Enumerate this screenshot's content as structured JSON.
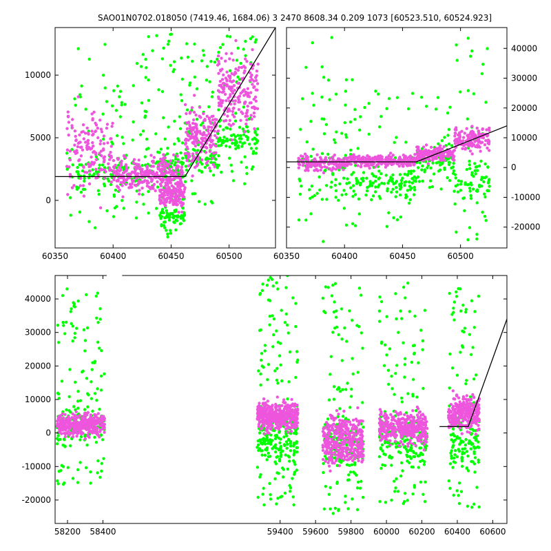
{
  "title": "SAO01N0702.018050 (7419.46, 1684.06)  3 2470 8608.34 0.209 1073 [60523.510, 60524.923]",
  "colors": {
    "series_a": "#00ff00",
    "series_b": "#ee55dd",
    "model": "#000000",
    "frame": "#000000"
  },
  "chart_data": [
    {
      "id": "top_left",
      "type": "scatter",
      "xlim": [
        60350,
        60540
      ],
      "ylim": [
        -3800,
        13800
      ],
      "xticks": [
        60350,
        60400,
        60450,
        60500
      ],
      "yticks": [
        0,
        5000,
        10000
      ],
      "ytick_side": "left",
      "clusters": [
        {
          "x": [
            60360,
            60400
          ],
          "ya": [
            -2500,
            12500
          ],
          "yb": [
            -1000,
            9000
          ],
          "n": 90
        },
        {
          "x": [
            60400,
            60425
          ],
          "ya": [
            -1500,
            11000
          ],
          "yb": [
            -300,
            4500
          ],
          "n": 70
        },
        {
          "x": [
            60425,
            60460
          ],
          "ya": [
            -2000,
            13500
          ],
          "yb": [
            -500,
            4500
          ],
          "n": 120
        },
        {
          "x": [
            60440,
            60462
          ],
          "ya": [
            -3000,
            3000
          ],
          "yb": [
            -1500,
            2500
          ],
          "n": 80
        },
        {
          "x": [
            60462,
            60490
          ],
          "ya": [
            -1000,
            13000
          ],
          "yb": [
            1000,
            9000
          ],
          "n": 110
        },
        {
          "x": [
            60490,
            60525
          ],
          "ya": [
            1000,
            13800
          ],
          "yb": [
            4000,
            13800
          ],
          "n": 120
        }
      ],
      "model": {
        "x": [
          60350,
          60462,
          60540
        ],
        "y": [
          1900,
          1900,
          13800
        ]
      }
    },
    {
      "id": "top_right",
      "type": "scatter",
      "xlim": [
        60350,
        60540
      ],
      "ylim": [
        -27000,
        47000
      ],
      "xticks": [
        60350,
        60400,
        60450,
        60500
      ],
      "yticks": [
        -20000,
        -10000,
        0,
        10000,
        20000,
        30000,
        40000
      ],
      "ytick_side": "right",
      "clusters": [
        {
          "x": [
            60360,
            60400
          ],
          "ya": [
            -25000,
            45000
          ],
          "yb": [
            -3000,
            6000
          ],
          "n": 80
        },
        {
          "x": [
            60400,
            60462
          ],
          "ya": [
            -20000,
            30000
          ],
          "yb": [
            -1000,
            5500
          ],
          "n": 160
        },
        {
          "x": [
            60462,
            60495
          ],
          "ya": [
            -8000,
            25000
          ],
          "yb": [
            0,
            9000
          ],
          "n": 90
        },
        {
          "x": [
            60495,
            60525
          ],
          "ya": [
            -26000,
            44000
          ],
          "yb": [
            3000,
            16000
          ],
          "n": 90
        }
      ],
      "model": {
        "x": [
          60350,
          60462,
          60540
        ],
        "y": [
          1900,
          1900,
          14000
        ]
      }
    },
    {
      "id": "bottom",
      "type": "scatter",
      "xlim": [
        58130,
        60680
      ],
      "ylim": [
        -27000,
        47000
      ],
      "xticks": [
        58200,
        58400,
        59400,
        59600,
        59800,
        60000,
        60200,
        60400,
        60600
      ],
      "yticks": [
        -20000,
        -10000,
        0,
        10000,
        20000,
        30000,
        40000
      ],
      "ytick_side": "left",
      "axis_break_x": [
        58410,
        58520
      ],
      "clusters": [
        {
          "x": [
            58140,
            58410
          ],
          "ya": [
            -16000,
            43000
          ],
          "yb": [
            -3000,
            8000
          ],
          "n": 200
        },
        {
          "x": [
            59270,
            59500
          ],
          "ya": [
            -22000,
            47000
          ],
          "yb": [
            -2000,
            12000
          ],
          "n": 260
        },
        {
          "x": [
            59640,
            59870
          ],
          "ya": [
            -24000,
            45000
          ],
          "yb": [
            -14000,
            10000
          ],
          "n": 220
        },
        {
          "x": [
            59960,
            60230
          ],
          "ya": [
            -22000,
            45000
          ],
          "yb": [
            -6000,
            9000
          ],
          "n": 220
        },
        {
          "x": [
            60350,
            60525
          ],
          "ya": [
            -24000,
            46000
          ],
          "yb": [
            -3000,
            15000
          ],
          "n": 160
        }
      ],
      "model": {
        "x": [
          60300,
          60462,
          60680
        ],
        "y": [
          1900,
          1900,
          34000
        ]
      }
    }
  ]
}
